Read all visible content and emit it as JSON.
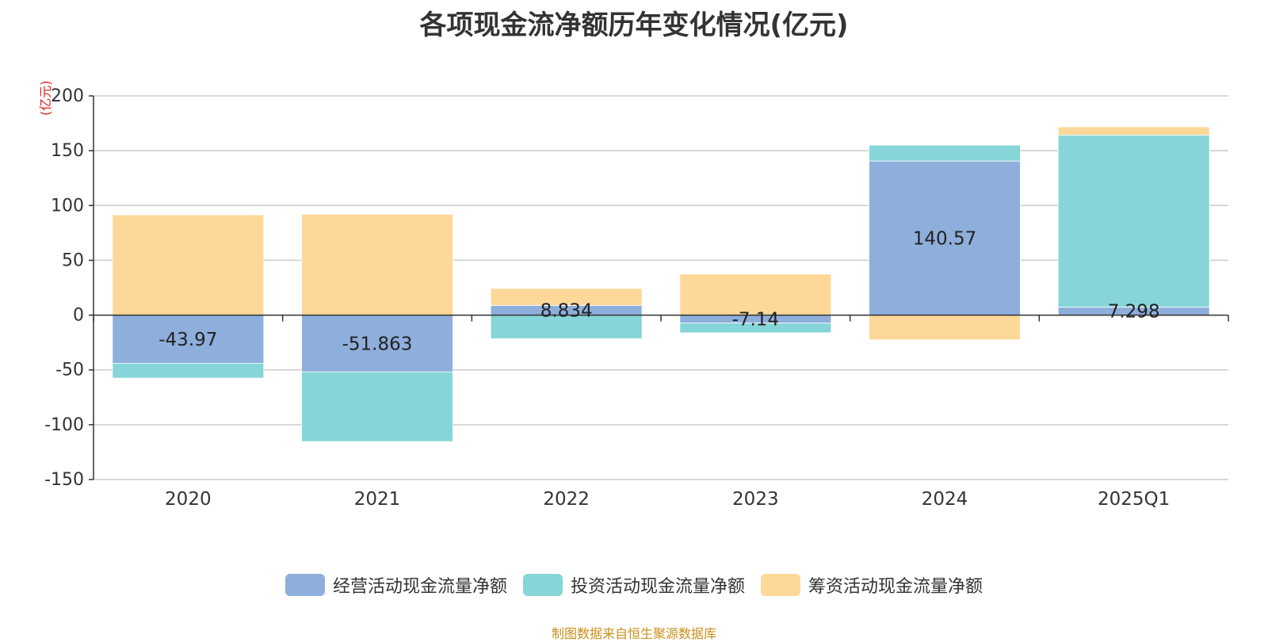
{
  "chart_data": {
    "type": "bar",
    "stacked": true,
    "title": "各项现金流净额历年变化情况(亿元)",
    "ylabel": "(亿元)",
    "categories": [
      "2020",
      "2021",
      "2022",
      "2023",
      "2024",
      "2025Q1"
    ],
    "ylim": [
      -150,
      200
    ],
    "yticks": [
      200,
      150,
      100,
      50,
      0,
      -50,
      -100,
      -150
    ],
    "grid": true,
    "legend_position": "bottom",
    "series": [
      {
        "name": "经营活动现金流量净额",
        "color": "#8eaedb",
        "values": [
          -43.97,
          -51.863,
          8.834,
          -7.14,
          140.57,
          7.298
        ],
        "labels": [
          "-43.97",
          "-51.863",
          "8.834",
          "-7.14",
          "140.57",
          "7.298"
        ]
      },
      {
        "name": "投资活动现金流量净额",
        "color": "#86d5d8",
        "values": [
          -13.5,
          -63.5,
          -21.5,
          -9,
          14.5,
          157
        ]
      },
      {
        "name": "筹资活动现金流量净额",
        "color": "#fed898",
        "values": [
          91.5,
          92,
          15.5,
          37.5,
          -22.5,
          7.5
        ]
      }
    ]
  },
  "footer": {
    "source": "制图数据来自恒生聚源数据库"
  }
}
